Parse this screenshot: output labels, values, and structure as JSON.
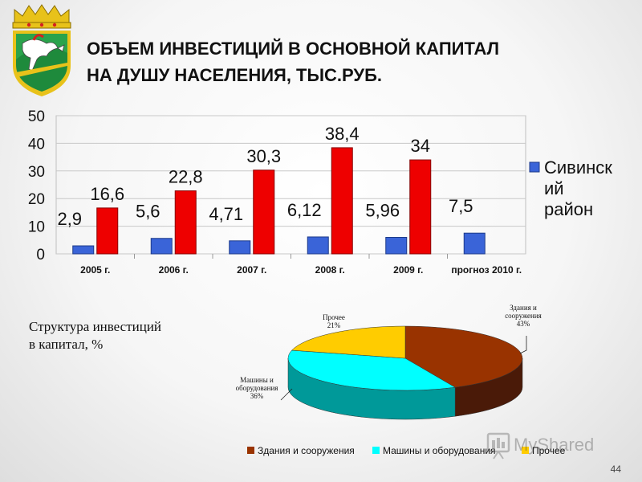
{
  "header": {
    "title_line1": "ОБЪЕМ ИНВЕСТИЦИЙ В ОСНОВНОЙ КАПИТАЛ",
    "title_line2": "НА ДУШУ НАСЕЛЕНИЯ, ТЫС.РУБ."
  },
  "colors": {
    "region_bar": "#3a64d8",
    "comparison_bar": "#ee0000",
    "pie_buildings": "#993300",
    "pie_buildings_side": "#4a1a08",
    "pie_machines": "#00ffff",
    "pie_machines_side": "#009999",
    "pie_other": "#ffcc00",
    "pie_other_side": "#b38f00"
  },
  "chart_data": [
    {
      "type": "bar",
      "categories": [
        "2005 г.",
        "2006 г.",
        "2007 г.",
        "2008 г.",
        "2009 г.",
        "прогноз 2010 г."
      ],
      "series": [
        {
          "name": "Сивинский район",
          "values": [
            2.9,
            5.6,
            4.71,
            6.12,
            5.96,
            7.5
          ],
          "labels": [
            "2,9",
            "5,6",
            "4,71",
            "6,12",
            "5,96",
            "7,5"
          ]
        },
        {
          "name": "",
          "values": [
            16.6,
            22.8,
            30.3,
            38.4,
            34,
            null
          ],
          "labels": [
            "16,6",
            "22,8",
            "30,3",
            "38,4",
            "34",
            ""
          ]
        }
      ],
      "ylim": [
        0,
        50
      ],
      "yticks": [
        "0",
        "10",
        "20",
        "30",
        "40",
        "50"
      ],
      "legend": {
        "lines": [
          "Сивинск",
          "ий",
          "район"
        ],
        "position": "right"
      },
      "grid": true
    },
    {
      "type": "pie",
      "categories": [
        "Здания и сооружения",
        "Машины и оборудования",
        "Прочее"
      ],
      "values": [
        43,
        36,
        21
      ],
      "slice_labels": [
        {
          "lines": [
            "Здания и",
            "сооружения",
            "43%"
          ]
        },
        {
          "lines": [
            "Машины и",
            "оборудования",
            "36%"
          ]
        },
        {
          "lines": [
            "Прочее",
            "21%"
          ]
        }
      ],
      "legend": {
        "position": "bottom"
      }
    }
  ],
  "structure_label": {
    "line1": "Структура инвестиций",
    "line2": "в капитал, %"
  },
  "footer": {
    "page_number": "44",
    "watermark": "MyShared"
  }
}
